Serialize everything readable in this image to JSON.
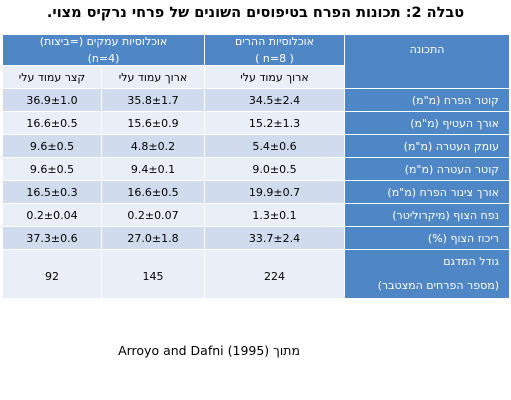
{
  "title": "טבלה 2: תכונות הפרח בטיפוסים השונים של פרחי נרקיס מצוי.",
  "columns": {
    "property": "התכונה",
    "hill": {
      "name": "אוכלוסיות ההרים",
      "n": "( n=8 )"
    },
    "deep": {
      "name": "אוכלוסיות עמקים (=ביצות)",
      "n": "(n=4)"
    }
  },
  "subheaders": {
    "hill_long": "ארוך עמוד עלי",
    "deep_long": "ארוך עמוד עלי",
    "deep_short": "קצר עמוד עלי"
  },
  "rows": [
    {
      "property": "קוטר הפרח (מ\"מ)",
      "hill_long": "34.5±2.4",
      "deep_long": "35.8±1.7",
      "deep_short": "36.9±1.0"
    },
    {
      "property": "אורך העטיף (מ\"מ)",
      "hill_long": "15.2±1.3",
      "deep_long": "15.6±0.9",
      "deep_short": "16.6±0.5"
    },
    {
      "property": "עומק העטרה (מ\"מ)",
      "hill_long": "5.4±0.6",
      "deep_long": "4.8±0.2",
      "deep_short": "9.6±0.5"
    },
    {
      "property": "קוטר העטרה (מ\"מ)",
      "hill_long": "9.0±0.5",
      "deep_long": "9.4±0.1",
      "deep_short": "9.6±0.5"
    },
    {
      "property": "אורך צינור הפרח (מ\"מ)",
      "hill_long": "19.9±0.7",
      "deep_long": "16.6±0.5",
      "deep_short": "16.5±0.3"
    },
    {
      "property": "נפח הצוף (מיקרוליטר)",
      "hill_long": "1.3±0.1",
      "deep_long": "0.2±0.07",
      "deep_short": "0.2±0.04"
    },
    {
      "property": "ריכוז הצוף (%)",
      "hill_long": "33.7±2.4",
      "deep_long": "27.0±1.8",
      "deep_short": "37.3±0.6"
    }
  ],
  "sample": {
    "label_line1": "גודל המדגם",
    "label_line2": "(מספר הפרחים המצטבר)",
    "hill_long": "224",
    "deep_long": "145",
    "deep_short": "92"
  },
  "source": "מתוך Arroyo and Dafni (1995)",
  "colors": {
    "header_blue": "#4e86c6",
    "row_dark": "#d0dbee",
    "row_light": "#e9eef7"
  }
}
